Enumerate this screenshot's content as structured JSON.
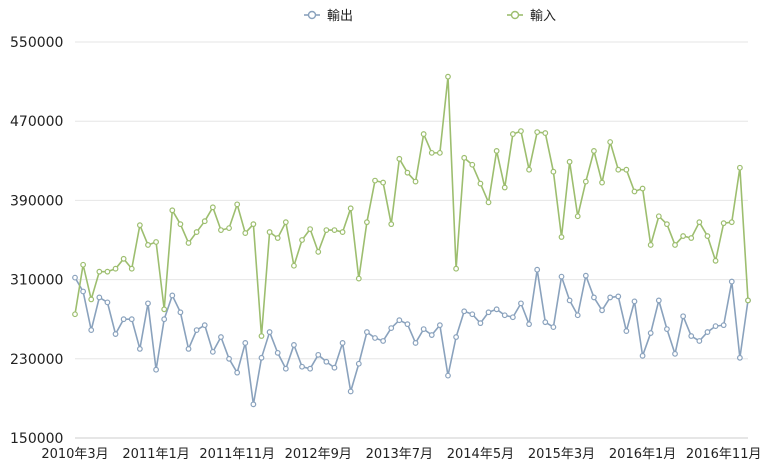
{
  "chart_data": {
    "type": "line",
    "title": "",
    "xlabel": "",
    "ylabel": "",
    "ylim": [
      150000,
      550000
    ],
    "y_ticks": [
      "550000",
      "470000",
      "390000",
      "310000",
      "230000",
      "150000"
    ],
    "x_tick_labels": [
      "2010年3月",
      "2011年1月",
      "2011年11月",
      "2012年9月",
      "2013年7月",
      "2014年5月",
      "2015年3月",
      "2016年1月",
      "2016年11月"
    ],
    "x_tick_every": 10,
    "n_points": 84,
    "legend_position": "top-center",
    "series": [
      {
        "name": "輸出",
        "color": "#8aa2bd",
        "values": [
          312000,
          298000,
          259000,
          292000,
          287000,
          255000,
          270000,
          270000,
          240000,
          286000,
          219000,
          270000,
          294000,
          277000,
          240000,
          259000,
          264000,
          237000,
          252000,
          230000,
          216000,
          246000,
          184000,
          231000,
          257000,
          236000,
          220000,
          244000,
          222000,
          220000,
          234000,
          227000,
          221000,
          246000,
          197000,
          225000,
          257000,
          251000,
          248000,
          261000,
          269000,
          265000,
          246000,
          260000,
          254000,
          264000,
          213000,
          252000,
          278000,
          275000,
          266000,
          277000,
          280000,
          274000,
          272000,
          286000,
          265000,
          320000,
          267000,
          262000,
          313000,
          289000,
          274000,
          314000,
          292000,
          279000,
          292000,
          293000,
          258000,
          288000,
          233000,
          256000,
          289000,
          260000,
          235000,
          273000,
          253000,
          248000,
          257000,
          263000,
          264000,
          308000,
          231000,
          289000
        ]
      },
      {
        "name": "輸入",
        "color": "#9dbe6f",
        "values": [
          275000,
          325000,
          290000,
          318000,
          318000,
          321000,
          331000,
          321000,
          365000,
          345000,
          348000,
          280000,
          380000,
          366000,
          347000,
          358000,
          369000,
          383000,
          360000,
          362000,
          386000,
          357000,
          366000,
          253000,
          358000,
          352000,
          368000,
          324000,
          350000,
          361000,
          338000,
          360000,
          360000,
          358000,
          382000,
          311000,
          368000,
          410000,
          408000,
          366000,
          432000,
          418000,
          409000,
          457000,
          438000,
          438000,
          515000,
          321000,
          433000,
          426000,
          407000,
          388000,
          440000,
          403000,
          457000,
          460000,
          421000,
          459000,
          458000,
          419000,
          353000,
          429000,
          374000,
          409000,
          440000,
          408000,
          449000,
          421000,
          421000,
          399000,
          402000,
          345000,
          374000,
          366000,
          345000,
          354000,
          352000,
          368000,
          354000,
          329000,
          367000,
          368000,
          423000,
          289000
        ]
      }
    ]
  }
}
